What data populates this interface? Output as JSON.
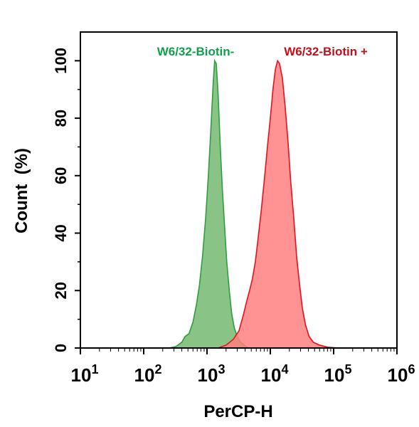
{
  "chart_data": {
    "type": "area",
    "title": "",
    "xlabel": "PerCP-H",
    "ylabel": "Count  (%)",
    "xscale": "log",
    "xlim": [
      10,
      1000000
    ],
    "ylim": [
      0,
      110
    ],
    "grid": false,
    "x_tick_labels": [
      {
        "value": 10,
        "base": "10",
        "exp": "1"
      },
      {
        "value": 100,
        "base": "10",
        "exp": "2"
      },
      {
        "value": 1000,
        "base": "10",
        "exp": "3"
      },
      {
        "value": 10000,
        "base": "10",
        "exp": "4"
      },
      {
        "value": 100000,
        "base": "10",
        "exp": "5"
      },
      {
        "value": 1000000,
        "base": "10",
        "exp": "6"
      }
    ],
    "y_ticks": [
      0,
      20,
      40,
      60,
      80,
      100
    ],
    "y_tick_labels": [
      "0",
      "20",
      "40",
      "60",
      "80",
      "100"
    ],
    "series": [
      {
        "name": "W6/32-Biotin-",
        "color": "#2e9e3e",
        "fill": "#84c07f",
        "label_color": "#11a04a",
        "x": [
          250,
          320,
          400,
          450,
          520,
          600,
          680,
          760,
          850,
          950,
          1050,
          1150,
          1250,
          1320,
          1400,
          1500,
          1620,
          1750,
          1900,
          2050,
          2250,
          2450,
          2700,
          3000,
          3400,
          3900,
          4500
        ],
        "y": [
          0,
          0.5,
          2,
          4,
          5,
          9,
          15,
          22,
          32,
          45,
          60,
          76,
          92,
          100,
          99,
          88,
          70,
          55,
          42,
          30,
          20,
          12,
          7,
          4,
          2,
          1,
          0
        ]
      },
      {
        "name": "W6/32-Biotin +",
        "color": "#e8101a",
        "fill": "#ff7f7f",
        "label_color": "#c0111a",
        "x": [
          1500,
          2000,
          2600,
          3200,
          3800,
          4200,
          4700,
          5200,
          5800,
          6400,
          7200,
          8000,
          9000,
          10000,
          11000,
          12000,
          13000,
          14000,
          15500,
          17000,
          19000,
          21000,
          23500,
          26000,
          29000,
          32000,
          36000,
          41000,
          48000,
          60000,
          80000,
          120000
        ],
        "y": [
          0,
          1,
          3,
          6,
          12,
          16,
          20,
          24,
          30,
          38,
          48,
          58,
          70,
          80,
          90,
          97,
          100,
          99,
          94,
          85,
          72,
          58,
          45,
          32,
          22,
          14,
          8,
          4,
          2,
          1,
          0.3,
          0
        ]
      }
    ],
    "legend": "top",
    "annotations": [
      "W6/32-Biotin-",
      "W6/32-Biotin +"
    ]
  }
}
